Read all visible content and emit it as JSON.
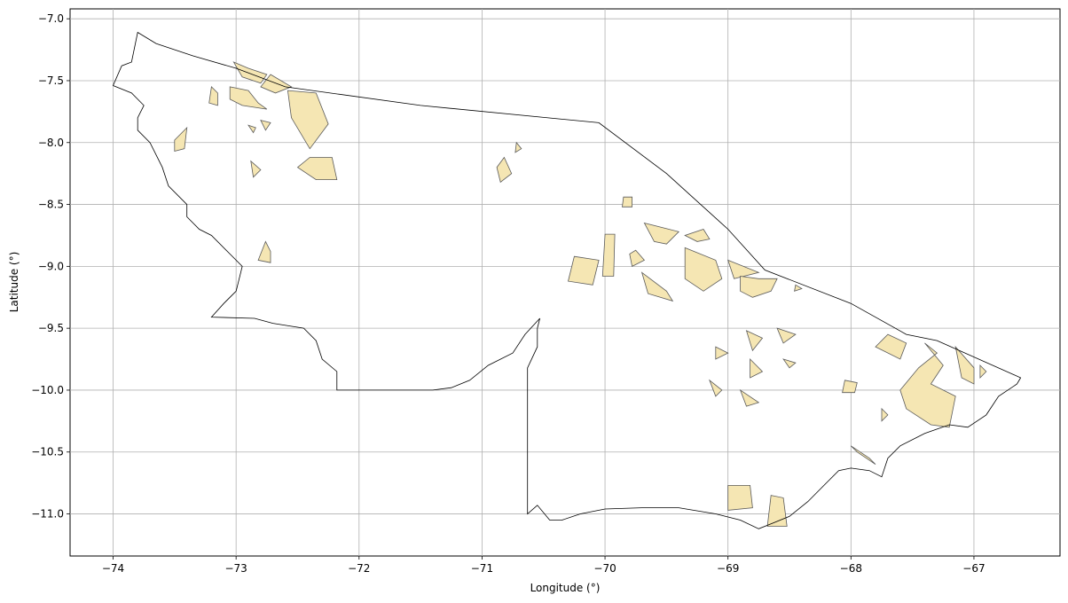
{
  "chart_data": {
    "type": "map",
    "xlabel": "Longitude (°)",
    "ylabel": "Latitude (°)",
    "xlim": [
      -74.35,
      -66.3
    ],
    "ylim": [
      -11.34,
      -6.92
    ],
    "xticks": [
      -74,
      -73,
      -72,
      -71,
      -70,
      -69,
      -68,
      -67
    ],
    "yticks": [
      -7.0,
      -7.5,
      -8.0,
      -8.5,
      -9.0,
      -9.5,
      -10.0,
      -10.5,
      -11.0
    ],
    "xtick_labels": [
      "−74",
      "−73",
      "−72",
      "−71",
      "−70",
      "−69",
      "−68",
      "−67"
    ],
    "ytick_labels": [
      "−7.0",
      "−7.5",
      "−8.0",
      "−8.5",
      "−9.0",
      "−9.5",
      "−10.0",
      "−10.5",
      "−11.0"
    ],
    "grid": true,
    "boundary_color": "#000000",
    "fill_color": "#f5e6b3",
    "fill_edge_color": "#5a5a5a",
    "boundary": [
      [
        -73.8,
        -7.11
      ],
      [
        -73.65,
        -7.2
      ],
      [
        -73.35,
        -7.3
      ],
      [
        -73.0,
        -7.4
      ],
      [
        -72.6,
        -7.55
      ],
      [
        -71.5,
        -7.7
      ],
      [
        -70.05,
        -7.84
      ],
      [
        -69.5,
        -8.25
      ],
      [
        -69.0,
        -8.7
      ],
      [
        -68.7,
        -9.03
      ],
      [
        -68.0,
        -9.3
      ],
      [
        -67.55,
        -9.55
      ],
      [
        -67.3,
        -9.6
      ],
      [
        -66.62,
        -9.9
      ],
      [
        -66.65,
        -9.95
      ],
      [
        -66.8,
        -10.05
      ],
      [
        -66.9,
        -10.2
      ],
      [
        -67.05,
        -10.3
      ],
      [
        -67.2,
        -10.28
      ],
      [
        -67.4,
        -10.35
      ],
      [
        -67.6,
        -10.45
      ],
      [
        -67.7,
        -10.55
      ],
      [
        -67.75,
        -10.7
      ],
      [
        -67.85,
        -10.65
      ],
      [
        -68.0,
        -10.63
      ],
      [
        -68.1,
        -10.65
      ],
      [
        -68.2,
        -10.75
      ],
      [
        -68.35,
        -10.9
      ],
      [
        -68.5,
        -11.02
      ],
      [
        -68.65,
        -11.08
      ],
      [
        -68.75,
        -11.12
      ],
      [
        -68.9,
        -11.05
      ],
      [
        -69.1,
        -11.0
      ],
      [
        -69.4,
        -10.95
      ],
      [
        -69.7,
        -10.95
      ],
      [
        -70.0,
        -10.96
      ],
      [
        -70.2,
        -11.0
      ],
      [
        -70.35,
        -11.05
      ],
      [
        -70.45,
        -11.05
      ],
      [
        -70.55,
        -10.93
      ],
      [
        -70.63,
        -11.0
      ],
      [
        -70.63,
        -9.82
      ],
      [
        -70.55,
        -9.65
      ],
      [
        -70.55,
        -9.5
      ],
      [
        -70.53,
        -9.42
      ],
      [
        -70.65,
        -9.55
      ],
      [
        -70.75,
        -9.7
      ],
      [
        -70.95,
        -9.8
      ],
      [
        -71.1,
        -9.92
      ],
      [
        -71.25,
        -9.98
      ],
      [
        -71.4,
        -10.0
      ],
      [
        -72.18,
        -10.0
      ],
      [
        -72.18,
        -9.85
      ],
      [
        -72.3,
        -9.75
      ],
      [
        -72.35,
        -9.6
      ],
      [
        -72.45,
        -9.5
      ],
      [
        -72.7,
        -9.46
      ],
      [
        -72.85,
        -9.42
      ],
      [
        -73.2,
        -9.41
      ],
      [
        -73.1,
        -9.3
      ],
      [
        -73.0,
        -9.2
      ],
      [
        -72.95,
        -9.0
      ],
      [
        -73.05,
        -8.9
      ],
      [
        -73.2,
        -8.75
      ],
      [
        -73.3,
        -8.7
      ],
      [
        -73.4,
        -8.6
      ],
      [
        -73.4,
        -8.5
      ],
      [
        -73.55,
        -8.35
      ],
      [
        -73.6,
        -8.2
      ],
      [
        -73.7,
        -8.0
      ],
      [
        -73.8,
        -7.9
      ],
      [
        -73.8,
        -7.8
      ],
      [
        -73.75,
        -7.7
      ],
      [
        -73.85,
        -7.6
      ],
      [
        -74.0,
        -7.54
      ],
      [
        -73.93,
        -7.38
      ],
      [
        -73.85,
        -7.35
      ],
      [
        -73.8,
        -7.11
      ]
    ],
    "areas": [
      [
        [
          -73.02,
          -7.35
        ],
        [
          -72.9,
          -7.4
        ],
        [
          -72.75,
          -7.45
        ],
        [
          -72.8,
          -7.52
        ],
        [
          -72.95,
          -7.47
        ]
      ],
      [
        [
          -72.72,
          -7.45
        ],
        [
          -72.55,
          -7.55
        ],
        [
          -72.68,
          -7.6
        ],
        [
          -72.8,
          -7.55
        ]
      ],
      [
        [
          -73.05,
          -7.55
        ],
        [
          -72.9,
          -7.58
        ],
        [
          -72.82,
          -7.68
        ],
        [
          -72.75,
          -7.73
        ],
        [
          -72.95,
          -7.7
        ],
        [
          -73.05,
          -7.65
        ]
      ],
      [
        [
          -73.2,
          -7.55
        ],
        [
          -73.15,
          -7.6
        ],
        [
          -73.15,
          -7.7
        ],
        [
          -73.22,
          -7.68
        ]
      ],
      [
        [
          -72.58,
          -7.58
        ],
        [
          -72.35,
          -7.6
        ],
        [
          -72.25,
          -7.85
        ],
        [
          -72.4,
          -8.05
        ],
        [
          -72.55,
          -7.8
        ]
      ],
      [
        [
          -73.4,
          -7.88
        ],
        [
          -73.5,
          -7.98
        ],
        [
          -73.5,
          -8.07
        ],
        [
          -73.42,
          -8.05
        ]
      ],
      [
        [
          -72.8,
          -7.82
        ],
        [
          -72.72,
          -7.84
        ],
        [
          -72.76,
          -7.9
        ]
      ],
      [
        [
          -72.9,
          -7.86
        ],
        [
          -72.84,
          -7.88
        ],
        [
          -72.86,
          -7.92
        ]
      ],
      [
        [
          -72.4,
          -8.12
        ],
        [
          -72.22,
          -8.12
        ],
        [
          -72.18,
          -8.3
        ],
        [
          -72.35,
          -8.3
        ],
        [
          -72.5,
          -8.2
        ]
      ],
      [
        [
          -72.88,
          -8.15
        ],
        [
          -72.8,
          -8.22
        ],
        [
          -72.86,
          -8.28
        ]
      ],
      [
        [
          -70.82,
          -8.12
        ],
        [
          -70.88,
          -8.2
        ],
        [
          -70.85,
          -8.32
        ],
        [
          -70.76,
          -8.25
        ]
      ],
      [
        [
          -70.72,
          -8.0
        ],
        [
          -70.68,
          -8.05
        ],
        [
          -70.73,
          -8.08
        ]
      ],
      [
        [
          -72.76,
          -8.8
        ],
        [
          -72.72,
          -8.88
        ],
        [
          -72.72,
          -8.97
        ],
        [
          -72.82,
          -8.95
        ]
      ],
      [
        [
          -69.85,
          -8.44
        ],
        [
          -69.78,
          -8.44
        ],
        [
          -69.78,
          -8.52
        ],
        [
          -69.86,
          -8.52
        ]
      ],
      [
        [
          -69.68,
          -8.65
        ],
        [
          -69.4,
          -8.72
        ],
        [
          -69.5,
          -8.82
        ],
        [
          -69.6,
          -8.8
        ]
      ],
      [
        [
          -69.75,
          -8.87
        ],
        [
          -69.68,
          -8.95
        ],
        [
          -69.78,
          -9.0
        ],
        [
          -69.8,
          -8.9
        ]
      ],
      [
        [
          -69.35,
          -8.75
        ],
        [
          -69.25,
          -8.8
        ],
        [
          -69.15,
          -8.78
        ],
        [
          -69.2,
          -8.7
        ]
      ],
      [
        [
          -70.0,
          -8.74
        ],
        [
          -69.92,
          -8.74
        ],
        [
          -69.93,
          -9.08
        ],
        [
          -70.02,
          -9.08
        ]
      ],
      [
        [
          -70.25,
          -8.92
        ],
        [
          -70.05,
          -8.95
        ],
        [
          -70.1,
          -9.15
        ],
        [
          -70.3,
          -9.12
        ]
      ],
      [
        [
          -69.7,
          -9.05
        ],
        [
          -69.5,
          -9.2
        ],
        [
          -69.45,
          -9.28
        ],
        [
          -69.65,
          -9.22
        ]
      ],
      [
        [
          -69.35,
          -8.85
        ],
        [
          -69.1,
          -8.95
        ],
        [
          -69.05,
          -9.1
        ],
        [
          -69.2,
          -9.2
        ],
        [
          -69.35,
          -9.1
        ]
      ],
      [
        [
          -69.0,
          -8.95
        ],
        [
          -68.75,
          -9.05
        ],
        [
          -68.95,
          -9.1
        ]
      ],
      [
        [
          -68.9,
          -9.08
        ],
        [
          -68.75,
          -9.1
        ],
        [
          -68.6,
          -9.1
        ],
        [
          -68.65,
          -9.2
        ],
        [
          -68.8,
          -9.25
        ],
        [
          -68.9,
          -9.2
        ]
      ],
      [
        [
          -68.45,
          -9.15
        ],
        [
          -68.4,
          -9.18
        ],
        [
          -68.46,
          -9.2
        ]
      ],
      [
        [
          -68.85,
          -9.52
        ],
        [
          -68.72,
          -9.58
        ],
        [
          -68.8,
          -9.68
        ]
      ],
      [
        [
          -68.6,
          -9.5
        ],
        [
          -68.45,
          -9.55
        ],
        [
          -68.55,
          -9.62
        ]
      ],
      [
        [
          -69.1,
          -9.65
        ],
        [
          -69.0,
          -9.7
        ],
        [
          -69.1,
          -9.75
        ]
      ],
      [
        [
          -68.82,
          -9.75
        ],
        [
          -68.72,
          -9.85
        ],
        [
          -68.82,
          -9.9
        ]
      ],
      [
        [
          -68.55,
          -9.75
        ],
        [
          -68.45,
          -9.78
        ],
        [
          -68.5,
          -9.82
        ]
      ],
      [
        [
          -69.15,
          -9.92
        ],
        [
          -69.05,
          -10.0
        ],
        [
          -69.1,
          -10.05
        ]
      ],
      [
        [
          -68.9,
          -10.0
        ],
        [
          -68.75,
          -10.1
        ],
        [
          -68.85,
          -10.13
        ]
      ],
      [
        [
          -68.05,
          -9.92
        ],
        [
          -67.95,
          -9.94
        ],
        [
          -67.97,
          -10.02
        ],
        [
          -68.07,
          -10.02
        ]
      ],
      [
        [
          -67.7,
          -9.55
        ],
        [
          -67.8,
          -9.65
        ],
        [
          -67.6,
          -9.75
        ],
        [
          -67.55,
          -9.62
        ]
      ],
      [
        [
          -67.4,
          -9.62
        ],
        [
          -67.25,
          -9.8
        ],
        [
          -67.35,
          -9.95
        ],
        [
          -67.15,
          -10.05
        ],
        [
          -67.2,
          -10.3
        ],
        [
          -67.35,
          -10.28
        ],
        [
          -67.55,
          -10.15
        ],
        [
          -67.6,
          -10.0
        ],
        [
          -67.45,
          -9.82
        ],
        [
          -67.3,
          -9.7
        ]
      ],
      [
        [
          -67.15,
          -9.65
        ],
        [
          -67.0,
          -9.82
        ],
        [
          -67.0,
          -9.95
        ],
        [
          -67.1,
          -9.9
        ]
      ],
      [
        [
          -66.95,
          -9.8
        ],
        [
          -66.9,
          -9.85
        ],
        [
          -66.95,
          -9.9
        ]
      ],
      [
        [
          -67.75,
          -10.15
        ],
        [
          -67.7,
          -10.2
        ],
        [
          -67.75,
          -10.25
        ]
      ],
      [
        [
          -68.0,
          -10.45
        ],
        [
          -67.85,
          -10.55
        ],
        [
          -67.8,
          -10.6
        ],
        [
          -67.95,
          -10.5
        ]
      ],
      [
        [
          -69.0,
          -10.77
        ],
        [
          -68.82,
          -10.77
        ],
        [
          -68.8,
          -10.95
        ],
        [
          -69.0,
          -10.97
        ]
      ],
      [
        [
          -68.65,
          -10.85
        ],
        [
          -68.55,
          -10.87
        ],
        [
          -68.52,
          -11.1
        ],
        [
          -68.68,
          -11.1
        ]
      ]
    ]
  }
}
